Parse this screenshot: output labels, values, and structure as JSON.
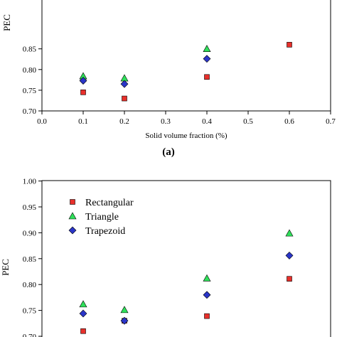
{
  "chart_data": [
    {
      "type": "scatter",
      "panel_label": "(a)",
      "xlabel": "Solid volume fraction (%)",
      "ylabel": "PEC",
      "xlim": [
        0.0,
        0.7
      ],
      "ylim": [
        0.7,
        0.9
      ],
      "x_ticks": [
        "0.0",
        "0.1",
        "0.2",
        "0.3",
        "0.4",
        "0.5",
        "0.6",
        "0.7"
      ],
      "y_ticks": [
        "0.70",
        "0.75",
        "0.80",
        "0.85"
      ],
      "series": [
        {
          "name": "Rectangular",
          "marker": "square",
          "color": "#e8302b",
          "points": [
            [
              0.1,
              0.745
            ],
            [
              0.2,
              0.73
            ],
            [
              0.4,
              0.782
            ],
            [
              0.6,
              0.86
            ]
          ]
        },
        {
          "name": "Triangle",
          "marker": "triangle",
          "color": "#2fe05a",
          "points": [
            [
              0.1,
              0.784
            ],
            [
              0.2,
              0.779
            ],
            [
              0.4,
              0.85
            ]
          ]
        },
        {
          "name": "Trapezoid",
          "marker": "diamond",
          "color": "#2a35c8",
          "points": [
            [
              0.1,
              0.773
            ],
            [
              0.2,
              0.765
            ],
            [
              0.4,
              0.826
            ]
          ]
        }
      ]
    },
    {
      "type": "scatter",
      "ylabel": "PEC",
      "xlim": [
        0.0,
        0.7
      ],
      "ylim": [
        0.7,
        1.0
      ],
      "y_ticks": [
        "0.70",
        "0.75",
        "0.80",
        "0.85",
        "0.90",
        "0.95",
        "1.00"
      ],
      "legend_position": "top-left",
      "series": [
        {
          "name": "Rectangular",
          "marker": "square",
          "color": "#e8302b",
          "points": [
            [
              0.1,
              0.71
            ],
            [
              0.2,
              0.73
            ],
            [
              0.4,
              0.739
            ],
            [
              0.6,
              0.811
            ]
          ]
        },
        {
          "name": "Triangle",
          "marker": "triangle",
          "color": "#2fe05a",
          "points": [
            [
              0.1,
              0.762
            ],
            [
              0.2,
              0.751
            ],
            [
              0.4,
              0.812
            ],
            [
              0.6,
              0.899
            ]
          ]
        },
        {
          "name": "Trapezoid",
          "marker": "diamond",
          "color": "#2a35c8",
          "points": [
            [
              0.1,
              0.744
            ],
            [
              0.2,
              0.73
            ],
            [
              0.4,
              0.78
            ],
            [
              0.6,
              0.856
            ]
          ]
        }
      ]
    }
  ]
}
